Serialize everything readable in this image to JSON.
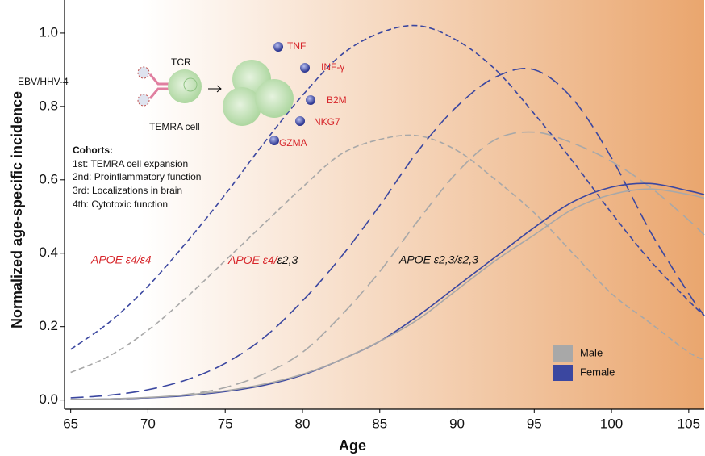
{
  "chart_data": {
    "type": "line",
    "xlabel": "Age",
    "ylabel": "Normalized age-specific incidence",
    "x": [
      65,
      67.5,
      70,
      72.5,
      75,
      77.5,
      80,
      82.5,
      85,
      87.5,
      90,
      92.5,
      95,
      97.5,
      100,
      102.5,
      105,
      106
    ],
    "series": [
      {
        "name": "Female",
        "color": "#3b47a0",
        "dash": "short",
        "values": [
          0.138,
          0.212,
          0.31,
          0.43,
          0.56,
          0.7,
          0.83,
          0.94,
          1.0,
          1.02,
          0.98,
          0.9,
          0.78,
          0.65,
          0.51,
          0.38,
          0.27,
          0.23
        ]
      },
      {
        "name": "Male",
        "color": "#a8a8a8",
        "dash": "short",
        "values": [
          0.075,
          0.12,
          0.19,
          0.28,
          0.38,
          0.48,
          0.58,
          0.67,
          0.71,
          0.72,
          0.68,
          0.6,
          0.51,
          0.4,
          0.29,
          0.21,
          0.13,
          0.11
        ]
      },
      {
        "name": "Female",
        "color": "#3b47a0",
        "dash": "long",
        "values": [
          0.006,
          0.013,
          0.028,
          0.055,
          0.1,
          0.17,
          0.27,
          0.39,
          0.53,
          0.68,
          0.8,
          0.88,
          0.9,
          0.82,
          0.66,
          0.46,
          0.29,
          0.23
        ]
      },
      {
        "name": "Male",
        "color": "#a8a8a8",
        "dash": "long",
        "values": [
          0.001,
          0.002,
          0.006,
          0.015,
          0.034,
          0.071,
          0.13,
          0.23,
          0.35,
          0.49,
          0.62,
          0.71,
          0.73,
          0.7,
          0.65,
          0.58,
          0.49,
          0.45
        ]
      },
      {
        "name": "Female",
        "color": "#3b47a0",
        "dash": "solid",
        "values": [
          0.001,
          0.003,
          0.006,
          0.012,
          0.023,
          0.04,
          0.068,
          0.11,
          0.16,
          0.23,
          0.31,
          0.39,
          0.47,
          0.54,
          0.58,
          0.59,
          0.57,
          0.56
        ]
      },
      {
        "name": "Male",
        "color": "#a8a8a8",
        "dash": "solid",
        "values": [
          0.002,
          0.003,
          0.007,
          0.014,
          0.025,
          0.043,
          0.07,
          0.11,
          0.16,
          0.22,
          0.3,
          0.38,
          0.45,
          0.52,
          0.56,
          0.575,
          0.56,
          0.55
        ]
      }
    ],
    "xlim": [
      64.6,
      106
    ],
    "ylim": [
      -0.025,
      1.09
    ],
    "xticks": [
      65,
      70,
      75,
      80,
      85,
      90,
      95,
      100,
      105
    ],
    "yticks": [
      {
        "value": 0,
        "label": "0.0"
      },
      0.2,
      0.4,
      0.6,
      0.8,
      {
        "value": 1,
        "label": "1.0"
      }
    ],
    "legend_position": "lower right",
    "annotations": {
      "virus": "EBV/HHV-4",
      "receptor": "TCR",
      "cell": "TEMRA cell",
      "cytokines": [
        "TNF",
        "INF-γ",
        "B2M",
        "NKG7",
        "GZMA"
      ],
      "cohorts_title": "Cohorts:",
      "cohorts": [
        "1st: TEMRA cell expansion",
        "2nd: Proinflammatory function",
        "3rd: Localizations in brain",
        "4th: Cytotoxic function"
      ],
      "apoe_e4e4": "APOE ε4/ε4",
      "apoe_e4e23": [
        "APOE ε4/",
        "ε2,3"
      ],
      "apoe_e23e23": "APOE ε2,3/ε2,3"
    }
  }
}
